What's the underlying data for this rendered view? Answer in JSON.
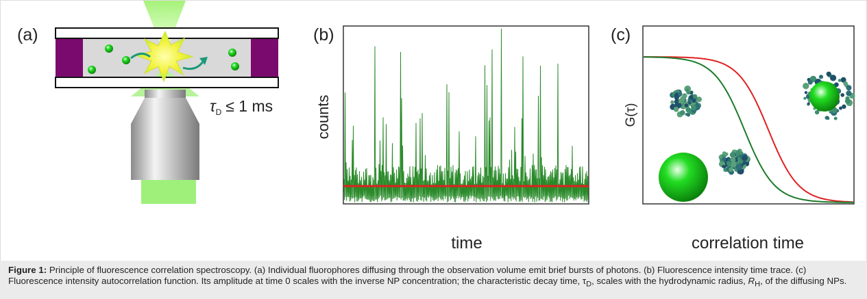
{
  "panels": {
    "a": {
      "label": "(a)",
      "tau_label": {
        "symbol": "τ",
        "sub": "D",
        "text": "≤ 1 ms"
      }
    },
    "b": {
      "label": "(b)",
      "y_label": "counts",
      "x_label": "time"
    },
    "c": {
      "label": "(c)",
      "y_label": "G(τ)",
      "x_label": "correlation time"
    }
  },
  "caption": {
    "label": "Figure 1:",
    "text_1": "Principle of fluorescence correlation spectroscopy. (a) Individual fluorophores diffusing through the observation volume emit brief bursts of photons. (b) Fluorescence intensity time trace. (c) Fluorescence intensity autocorrelation function. Its amplitude at time 0 scales with the inverse NP concentration; the characteristic decay time, τ",
    "sub_1": "D",
    "text_2": ", scales with the hydrodynamic radius,",
    "italic_1": "R",
    "sub_2": "H",
    "text_3": ", of the diffusing NPs."
  }
}
